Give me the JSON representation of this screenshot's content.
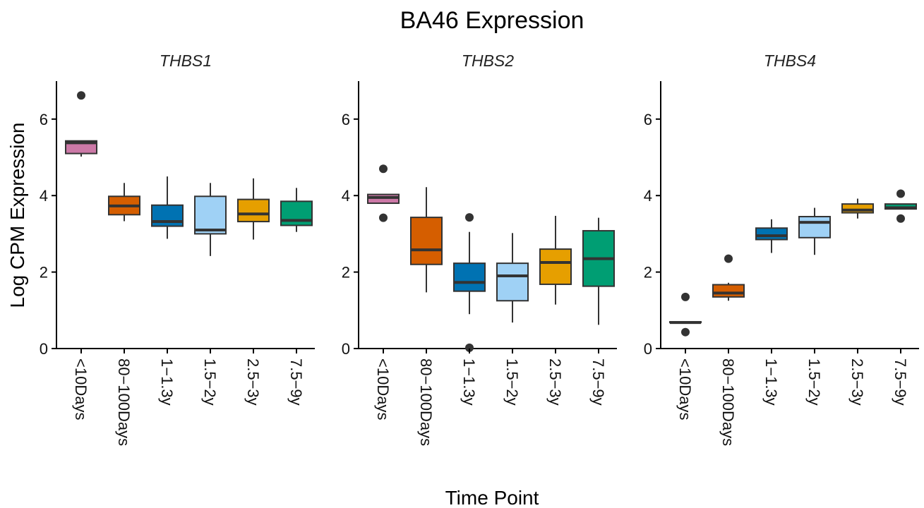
{
  "chart_data": {
    "type": "box",
    "title": "BA46 Expression",
    "xlabel": "Time Point",
    "ylabel": "Log CPM Expression",
    "ylim": [
      0,
      7
    ],
    "yticks": [
      0,
      2,
      4,
      6
    ],
    "categories": [
      "<10Days",
      "80−100Days",
      "1−1.3y",
      "1.5−2y",
      "2.5−3y",
      "7.5−9y"
    ],
    "colors": [
      "#CC79A7",
      "#D55E00",
      "#0072B2",
      "#9FD1F5",
      "#E69F00",
      "#009E73"
    ],
    "grid": false,
    "legend": "none",
    "panels": [
      {
        "title": "THBS1",
        "boxes": [
          {
            "min": 5.02,
            "q1": 5.1,
            "median": 5.38,
            "q3": 5.43,
            "max": 5.43,
            "outliers": [
              6.62
            ]
          },
          {
            "min": 3.33,
            "q1": 3.5,
            "median": 3.73,
            "q3": 3.98,
            "max": 4.33,
            "outliers": []
          },
          {
            "min": 2.87,
            "q1": 3.2,
            "median": 3.32,
            "q3": 3.75,
            "max": 4.5,
            "outliers": []
          },
          {
            "min": 2.42,
            "q1": 3.0,
            "median": 3.1,
            "q3": 3.98,
            "max": 4.33,
            "outliers": []
          },
          {
            "min": 2.85,
            "q1": 3.32,
            "median": 3.52,
            "q3": 3.9,
            "max": 4.45,
            "outliers": []
          },
          {
            "min": 3.05,
            "q1": 3.22,
            "median": 3.35,
            "q3": 3.85,
            "max": 4.2,
            "outliers": []
          }
        ]
      },
      {
        "title": "THBS2",
        "boxes": [
          {
            "min": 3.8,
            "q1": 3.8,
            "median": 3.95,
            "q3": 4.03,
            "max": 4.03,
            "outliers": [
              4.7,
              3.42
            ]
          },
          {
            "min": 1.47,
            "q1": 2.2,
            "median": 2.58,
            "q3": 3.43,
            "max": 4.22,
            "outliers": []
          },
          {
            "min": 0.9,
            "q1": 1.5,
            "median": 1.73,
            "q3": 2.23,
            "max": 3.05,
            "outliers": [
              3.43,
              0.02
            ]
          },
          {
            "min": 0.68,
            "q1": 1.25,
            "median": 1.9,
            "q3": 2.23,
            "max": 3.02,
            "outliers": []
          },
          {
            "min": 1.15,
            "q1": 1.68,
            "median": 2.25,
            "q3": 2.6,
            "max": 3.47,
            "outliers": []
          },
          {
            "min": 0.62,
            "q1": 1.63,
            "median": 2.35,
            "q3": 3.08,
            "max": 3.42,
            "outliers": []
          }
        ]
      },
      {
        "title": "THBS4",
        "boxes": [
          {
            "min": 0.68,
            "q1": 0.68,
            "median": 0.68,
            "q3": 0.7,
            "max": 0.7,
            "outliers": [
              1.35,
              0.43
            ]
          },
          {
            "min": 1.25,
            "q1": 1.35,
            "median": 1.45,
            "q3": 1.67,
            "max": 1.72,
            "outliers": [
              2.35
            ]
          },
          {
            "min": 2.5,
            "q1": 2.85,
            "median": 2.95,
            "q3": 3.15,
            "max": 3.38,
            "outliers": []
          },
          {
            "min": 2.45,
            "q1": 2.9,
            "median": 3.3,
            "q3": 3.45,
            "max": 3.68,
            "outliers": []
          },
          {
            "min": 3.4,
            "q1": 3.55,
            "median": 3.62,
            "q3": 3.78,
            "max": 3.92,
            "outliers": []
          },
          {
            "min": 3.65,
            "q1": 3.65,
            "median": 3.68,
            "q3": 3.78,
            "max": 3.78,
            "outliers": [
              4.05,
              3.4
            ]
          }
        ]
      }
    ]
  }
}
